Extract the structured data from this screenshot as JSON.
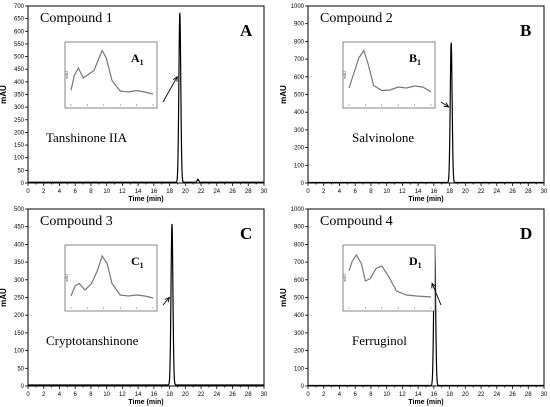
{
  "chart_data": [
    {
      "type": "line",
      "panel_letter": "A",
      "compound_label": "Compound 1",
      "compound_name": "Tanshinone IIA",
      "inset_label": "A",
      "inset_label_sub": "1",
      "xlabel": "Time (min)",
      "ylabel": "mAU",
      "xlim": [
        0,
        30
      ],
      "ylim": [
        0,
        700
      ],
      "xticks": [
        0,
        2,
        4,
        6,
        8,
        10,
        12,
        14,
        16,
        18,
        20,
        22,
        24,
        26,
        28,
        30
      ],
      "yticks": [
        0,
        50,
        100,
        150,
        200,
        250,
        300,
        350,
        400,
        450,
        500,
        550,
        600,
        650,
        700
      ],
      "peak_time": 19.3,
      "peak_height": 670,
      "peak_width": 0.12,
      "minor_peaks": [
        {
          "t": 21.6,
          "h": 12,
          "w": 0.1
        }
      ],
      "baseline": 3,
      "arrow_target": [
        19.1,
        420
      ],
      "inset_ylabel": "mAU",
      "inset_series": [
        [
          0.0,
          0.15
        ],
        [
          0.04,
          0.45
        ],
        [
          0.09,
          0.6
        ],
        [
          0.15,
          0.4
        ],
        [
          0.22,
          0.48
        ],
        [
          0.28,
          0.55
        ],
        [
          0.33,
          0.75
        ],
        [
          0.38,
          0.95
        ],
        [
          0.43,
          0.8
        ],
        [
          0.5,
          0.35
        ],
        [
          0.6,
          0.14
        ],
        [
          0.7,
          0.12
        ],
        [
          0.8,
          0.15
        ],
        [
          0.9,
          0.12
        ],
        [
          1.0,
          0.08
        ]
      ]
    },
    {
      "type": "line",
      "panel_letter": "B",
      "compound_label": "Compound 2",
      "compound_name": "Salvinolone",
      "inset_label": "B",
      "inset_label_sub": "1",
      "xlabel": "Time (min)",
      "ylabel": "mAU",
      "xlim": [
        0,
        30
      ],
      "ylim": [
        0,
        1000
      ],
      "xticks": [
        0,
        2,
        4,
        6,
        8,
        10,
        12,
        14,
        16,
        18,
        20,
        22,
        24,
        26,
        28,
        30
      ],
      "yticks": [
        0,
        100,
        200,
        300,
        400,
        500,
        600,
        700,
        800,
        900,
        1000
      ],
      "peak_time": 18.2,
      "peak_height": 790,
      "peak_width": 0.12,
      "minor_peaks": [],
      "baseline": 3,
      "arrow_target": [
        18.0,
        430
      ],
      "inset_ylabel": "mAU",
      "inset_series": [
        [
          0.0,
          0.2
        ],
        [
          0.05,
          0.45
        ],
        [
          0.12,
          0.8
        ],
        [
          0.18,
          0.95
        ],
        [
          0.23,
          0.7
        ],
        [
          0.3,
          0.25
        ],
        [
          0.4,
          0.15
        ],
        [
          0.5,
          0.16
        ],
        [
          0.6,
          0.22
        ],
        [
          0.7,
          0.2
        ],
        [
          0.8,
          0.24
        ],
        [
          0.9,
          0.22
        ],
        [
          1.0,
          0.12
        ]
      ]
    },
    {
      "type": "line",
      "panel_letter": "C",
      "compound_label": "Compound 3",
      "compound_name": "Cryptotanshinone",
      "inset_label": "C",
      "inset_label_sub": "1",
      "xlabel": "Time (min)",
      "ylabel": "mAU",
      "xlim": [
        0,
        30
      ],
      "ylim": [
        0,
        500
      ],
      "xticks": [
        0,
        2,
        4,
        6,
        8,
        10,
        12,
        14,
        16,
        18,
        20,
        22,
        24,
        26,
        28,
        30
      ],
      "yticks": [
        0,
        50,
        100,
        150,
        200,
        250,
        300,
        350,
        400,
        450,
        500
      ],
      "peak_time": 18.3,
      "peak_height": 455,
      "peak_width": 0.12,
      "minor_peaks": [],
      "baseline": 3,
      "arrow_target": [
        18.1,
        250
      ],
      "inset_ylabel": "mAU",
      "inset_series": [
        [
          0.0,
          0.1
        ],
        [
          0.05,
          0.3
        ],
        [
          0.1,
          0.35
        ],
        [
          0.17,
          0.22
        ],
        [
          0.25,
          0.35
        ],
        [
          0.32,
          0.6
        ],
        [
          0.38,
          0.9
        ],
        [
          0.44,
          0.75
        ],
        [
          0.5,
          0.35
        ],
        [
          0.6,
          0.12
        ],
        [
          0.7,
          0.1
        ],
        [
          0.8,
          0.12
        ],
        [
          0.9,
          0.1
        ],
        [
          1.0,
          0.06
        ]
      ]
    },
    {
      "type": "line",
      "panel_letter": "D",
      "compound_label": "Compound 4",
      "compound_name": "Ferruginol",
      "inset_label": "D",
      "inset_label_sub": "1",
      "xlabel": "Time (min)",
      "ylabel": "mAU",
      "xlim": [
        0,
        30
      ],
      "ylim": [
        0,
        1000
      ],
      "xticks": [
        0,
        2,
        4,
        6,
        8,
        10,
        12,
        14,
        16,
        18,
        20,
        22,
        24,
        26,
        28,
        30
      ],
      "yticks": [
        0,
        100,
        200,
        300,
        400,
        500,
        600,
        700,
        800,
        900,
        1000
      ],
      "peak_time": 16.1,
      "peak_height": 790,
      "peak_width": 0.12,
      "minor_peaks": [],
      "baseline": 3,
      "arrow_target": [
        15.9,
        580
      ],
      "inset_ylabel": "mAU",
      "inset_series": [
        [
          0.0,
          0.6
        ],
        [
          0.04,
          0.8
        ],
        [
          0.09,
          0.92
        ],
        [
          0.15,
          0.75
        ],
        [
          0.2,
          0.4
        ],
        [
          0.26,
          0.45
        ],
        [
          0.33,
          0.65
        ],
        [
          0.4,
          0.7
        ],
        [
          0.48,
          0.5
        ],
        [
          0.58,
          0.2
        ],
        [
          0.7,
          0.12
        ],
        [
          0.82,
          0.1
        ],
        [
          1.0,
          0.08
        ]
      ]
    }
  ]
}
